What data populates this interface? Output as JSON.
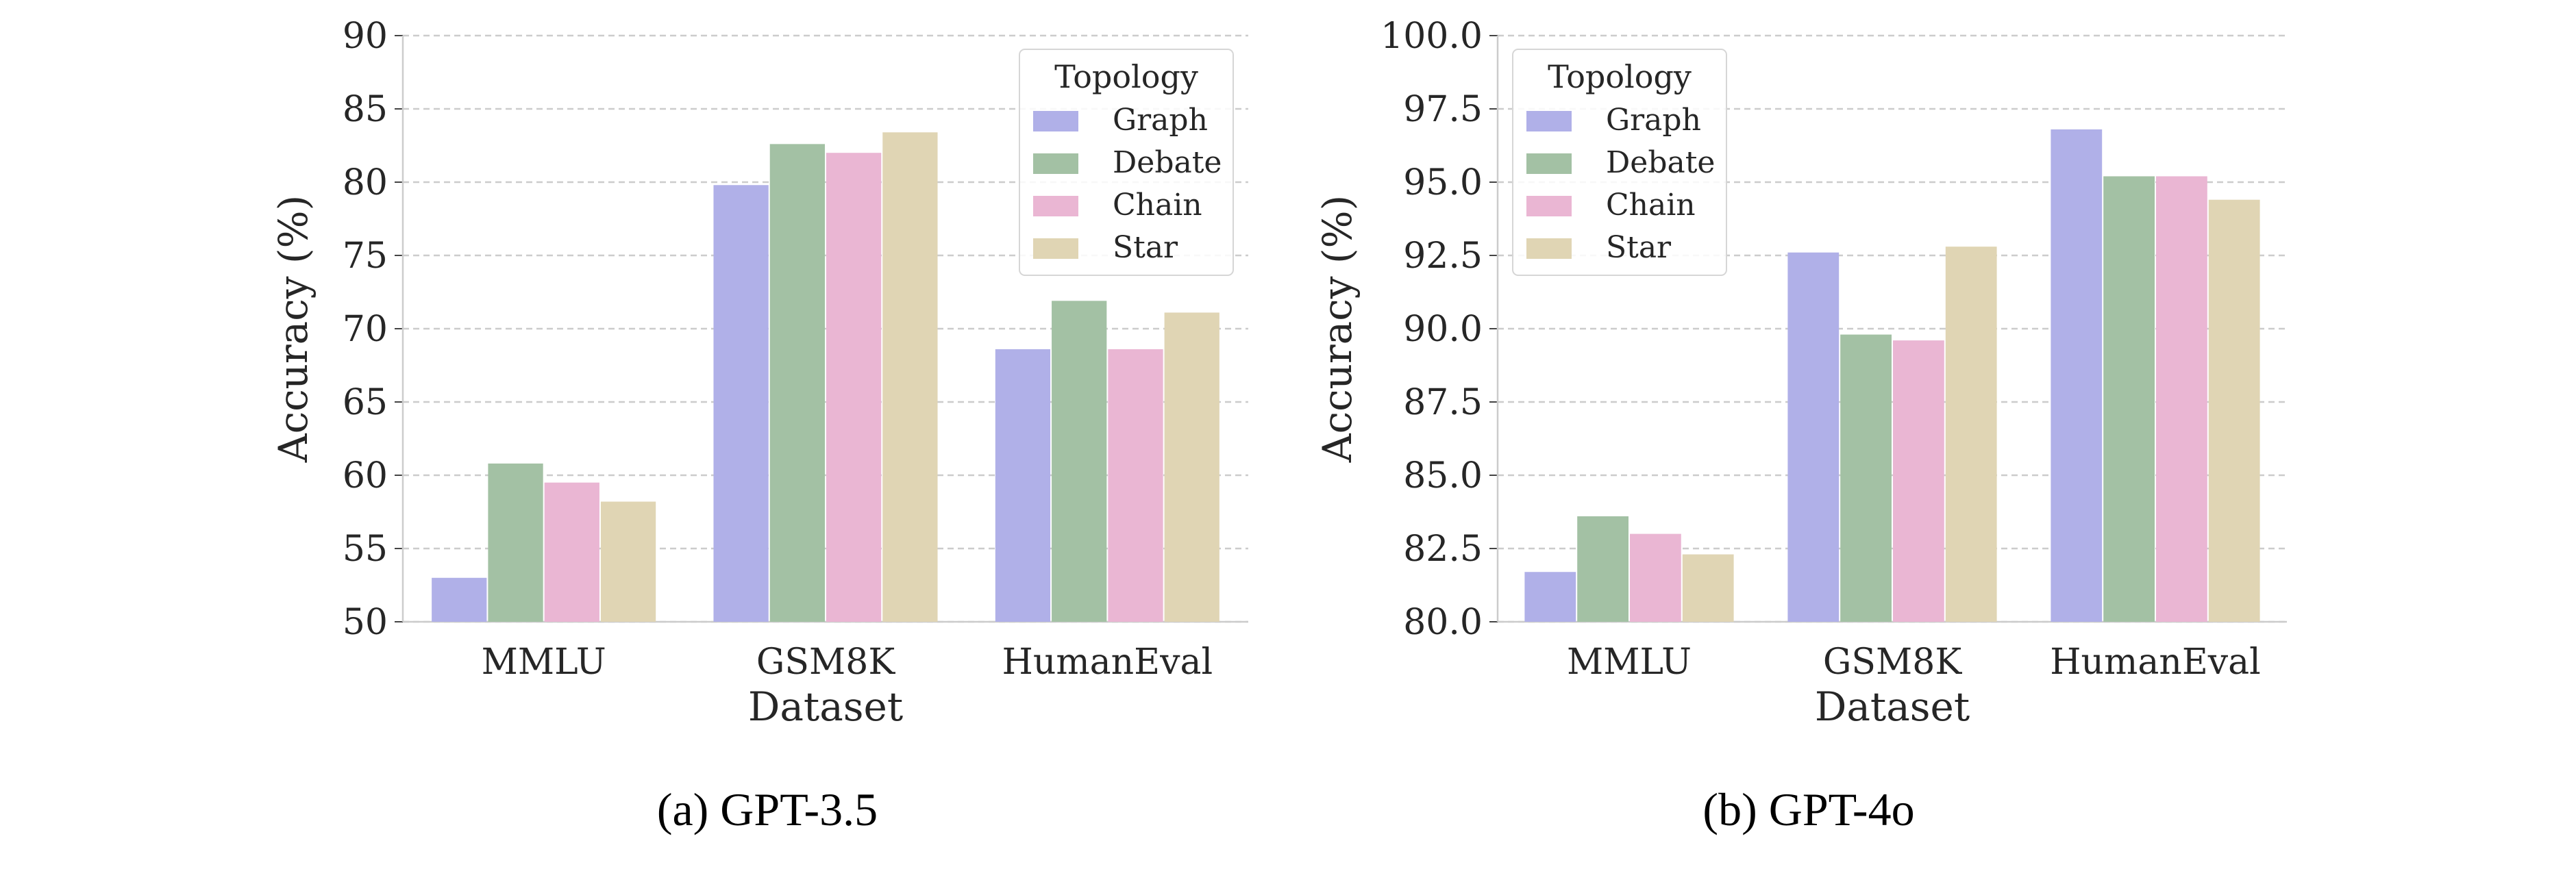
{
  "chart_data": [
    {
      "type": "bar",
      "caption": "(a) GPT-3.5",
      "xlabel": "Dataset",
      "ylabel": "Accuracy (%)",
      "categories": [
        "MMLU",
        "GSM8K",
        "HumanEval"
      ],
      "ylim": [
        50,
        90
      ],
      "yticks": [
        "50",
        "55",
        "60",
        "65",
        "70",
        "75",
        "80",
        "85",
        "90"
      ],
      "grid": true,
      "legend_title": "Topology",
      "legend_position": "top-right",
      "series": [
        {
          "name": "Graph",
          "color": "#b0b0e8",
          "values": [
            53.0,
            79.8,
            68.6
          ]
        },
        {
          "name": "Debate",
          "color": "#a3c1a4",
          "values": [
            60.8,
            82.6,
            71.9
          ]
        },
        {
          "name": "Chain",
          "color": "#eab6d3",
          "values": [
            59.5,
            82.0,
            68.6
          ]
        },
        {
          "name": "Star",
          "color": "#e0d5b4",
          "values": [
            58.2,
            83.4,
            71.1
          ]
        }
      ]
    },
    {
      "type": "bar",
      "caption": "(b) GPT-4o",
      "xlabel": "Dataset",
      "ylabel": "Accuracy (%)",
      "categories": [
        "MMLU",
        "GSM8K",
        "HumanEval"
      ],
      "ylim": [
        80,
        100
      ],
      "yticks": [
        "80.0",
        "82.5",
        "85.0",
        "87.5",
        "90.0",
        "92.5",
        "95.0",
        "97.5",
        "100.0"
      ],
      "grid": true,
      "legend_title": "Topology",
      "legend_position": "top-left",
      "series": [
        {
          "name": "Graph",
          "color": "#b0b0e8",
          "values": [
            81.7,
            92.6,
            96.8
          ]
        },
        {
          "name": "Debate",
          "color": "#a3c1a4",
          "values": [
            83.6,
            89.8,
            95.2
          ]
        },
        {
          "name": "Chain",
          "color": "#eab6d3",
          "values": [
            83.0,
            89.6,
            95.2
          ]
        },
        {
          "name": "Star",
          "color": "#e0d5b4",
          "values": [
            82.3,
            92.8,
            94.4
          ]
        }
      ]
    }
  ]
}
